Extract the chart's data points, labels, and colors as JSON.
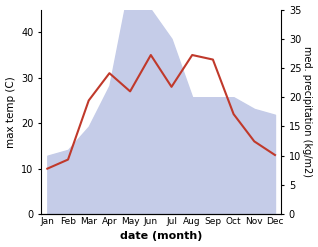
{
  "months": [
    "Jan",
    "Feb",
    "Mar",
    "Apr",
    "May",
    "Jun",
    "Jul",
    "Aug",
    "Sep",
    "Oct",
    "Nov",
    "Dec"
  ],
  "max_temp": [
    10,
    12,
    25,
    31,
    27,
    35,
    28,
    35,
    34,
    22,
    16,
    13
  ],
  "precipitation": [
    10,
    11,
    15,
    22,
    40,
    35,
    30,
    20,
    20,
    20,
    18,
    17
  ],
  "temp_fill_color": "#c5cce8",
  "precip_color": "#c0392b",
  "xlabel": "date (month)",
  "ylabel_left": "max temp (C)",
  "ylabel_right": "med. precipitation (kg/m2)",
  "ylim_left": [
    0,
    45
  ],
  "ylim_right": [
    0,
    35
  ],
  "yticks_left": [
    0,
    10,
    20,
    30,
    40
  ],
  "yticks_right": [
    0,
    5,
    10,
    15,
    20,
    25,
    30,
    35
  ],
  "bg_color": "#ffffff"
}
